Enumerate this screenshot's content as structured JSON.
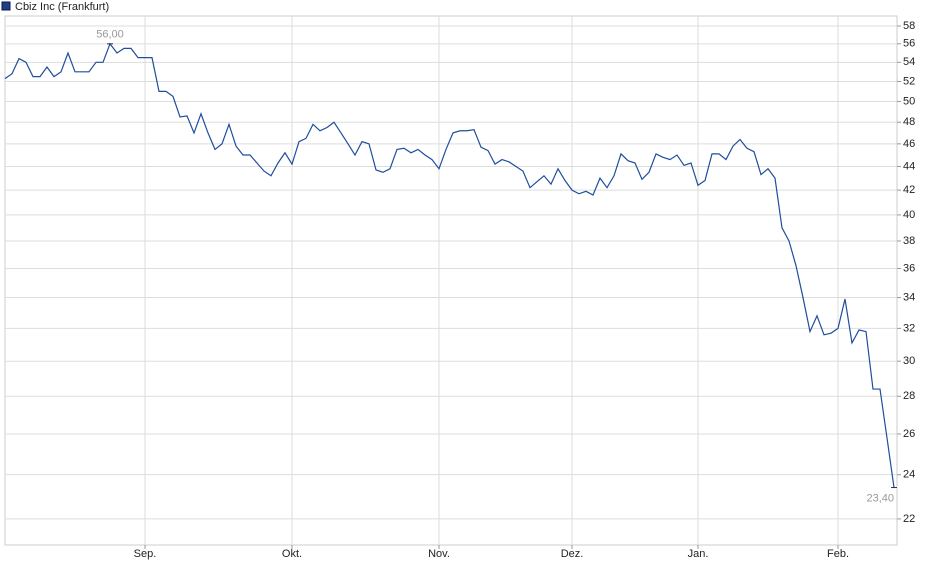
{
  "chart_data": {
    "type": "line",
    "log_scale": true,
    "grid": true,
    "legend": "top-left",
    "series": [
      {
        "name": "Cbiz Inc (Frankfurt)",
        "color": "#1f4e9c",
        "values": [
          52.3,
          52.8,
          54.4,
          54.0,
          52.5,
          52.5,
          53.5,
          52.5,
          53.0,
          55.0,
          53.0,
          53.0,
          53.0,
          54.0,
          54.0,
          56.0,
          55.0,
          55.5,
          55.5,
          54.5,
          54.5,
          54.5,
          51.0,
          51.0,
          50.5,
          48.5,
          48.6,
          47.0,
          48.8,
          47.0,
          45.5,
          46.0,
          47.8,
          45.8,
          45.0,
          45.0,
          44.3,
          43.6,
          43.2,
          44.3,
          45.2,
          44.2,
          46.2,
          46.5,
          47.8,
          47.2,
          47.5,
          48.0,
          47.0,
          46.0,
          45.0,
          46.2,
          46.0,
          43.7,
          43.5,
          43.8,
          45.5,
          45.6,
          45.2,
          45.5,
          45.0,
          44.6,
          43.8,
          45.5,
          47.0,
          47.2,
          47.2,
          47.3,
          45.7,
          45.4,
          44.2,
          44.6,
          44.4,
          44.0,
          43.6,
          42.2,
          42.7,
          43.2,
          42.5,
          43.8,
          42.8,
          42.0,
          41.7,
          41.9,
          41.6,
          43.0,
          42.2,
          43.2,
          45.1,
          44.5,
          44.3,
          42.9,
          43.5,
          45.1,
          44.8,
          44.6,
          45.0,
          44.1,
          44.3,
          42.4,
          42.8,
          45.1,
          45.1,
          44.6,
          45.8,
          46.4,
          45.6,
          45.3,
          43.3,
          43.8,
          43.0,
          39.0,
          38.0,
          36.2,
          34.0,
          31.8,
          32.8,
          31.6,
          31.7,
          32.0,
          33.9,
          31.1,
          31.9,
          31.8,
          28.4,
          28.4,
          25.8,
          23.4
        ]
      }
    ],
    "categories": [
      null,
      null,
      null,
      null,
      null,
      null,
      null,
      null,
      null,
      null,
      null,
      null,
      null,
      null,
      null,
      null,
      null,
      null,
      null,
      null,
      "Sep.",
      null,
      null,
      null,
      null,
      null,
      null,
      null,
      null,
      null,
      null,
      null,
      null,
      null,
      null,
      null,
      null,
      null,
      null,
      null,
      null,
      "Okt.",
      null,
      null,
      null,
      null,
      null,
      null,
      null,
      null,
      null,
      null,
      null,
      null,
      null,
      null,
      null,
      null,
      null,
      null,
      null,
      null,
      "Nov.",
      null,
      null,
      null,
      null,
      null,
      null,
      null,
      null,
      null,
      null,
      null,
      null,
      null,
      null,
      null,
      null,
      null,
      null,
      "Dez.",
      null,
      null,
      null,
      null,
      null,
      null,
      null,
      null,
      null,
      null,
      null,
      null,
      null,
      null,
      null,
      null,
      null,
      "Jan.",
      null,
      null,
      null,
      null,
      null,
      null,
      null,
      null,
      null,
      null,
      null,
      null,
      null,
      null,
      null,
      null,
      null,
      null,
      null,
      "Feb.",
      null,
      null,
      null,
      null,
      null,
      null,
      null,
      null
    ],
    "max_label": "56,00",
    "last_label": "23,40",
    "ylim": [
      20.9,
      59.15
    ],
    "yticks": [
      22,
      24,
      26,
      28,
      30,
      32,
      34,
      36,
      38,
      40,
      42,
      44,
      46,
      48,
      50,
      52,
      54,
      56,
      58
    ]
  }
}
